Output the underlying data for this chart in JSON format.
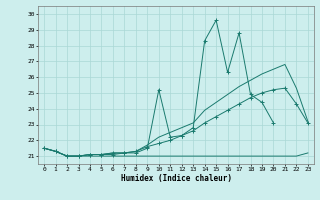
{
  "xlabel": "Humidex (Indice chaleur)",
  "x_values": [
    0,
    1,
    2,
    3,
    4,
    5,
    6,
    7,
    8,
    9,
    10,
    11,
    12,
    13,
    14,
    15,
    16,
    17,
    18,
    19,
    20,
    21,
    22,
    23
  ],
  "line_volatile": [
    21.5,
    21.3,
    21.0,
    21.0,
    21.1,
    21.1,
    21.1,
    21.2,
    21.2,
    21.5,
    25.2,
    22.2,
    22.3,
    22.8,
    28.3,
    29.6,
    26.3,
    28.8,
    24.9,
    24.4,
    23.1,
    null,
    null,
    null
  ],
  "line_flat": [
    21.5,
    21.3,
    21.0,
    21.0,
    21.0,
    21.0,
    21.0,
    21.0,
    21.0,
    21.0,
    21.0,
    21.0,
    21.0,
    21.0,
    21.0,
    21.0,
    21.0,
    21.0,
    21.0,
    21.0,
    21.0,
    21.0,
    21.0,
    21.2
  ],
  "line_upper": [
    21.5,
    21.3,
    21.0,
    21.0,
    21.1,
    21.1,
    21.2,
    21.2,
    21.3,
    21.7,
    22.2,
    22.5,
    22.8,
    23.1,
    23.9,
    24.4,
    24.9,
    25.4,
    25.8,
    26.2,
    26.5,
    26.8,
    25.3,
    23.2
  ],
  "line_mid": [
    21.5,
    21.3,
    21.0,
    21.0,
    21.1,
    21.1,
    21.2,
    21.2,
    21.3,
    21.6,
    21.8,
    22.0,
    22.3,
    22.6,
    23.1,
    23.5,
    23.9,
    24.3,
    24.7,
    25.0,
    25.2,
    25.3,
    24.3,
    23.1
  ],
  "ylim": [
    20.5,
    30.5
  ],
  "xlim": [
    -0.5,
    23.5
  ],
  "yticks": [
    21,
    22,
    23,
    24,
    25,
    26,
    27,
    28,
    29,
    30
  ],
  "xticks": [
    0,
    1,
    2,
    3,
    4,
    5,
    6,
    7,
    8,
    9,
    10,
    11,
    12,
    13,
    14,
    15,
    16,
    17,
    18,
    19,
    20,
    21,
    22,
    23
  ],
  "line_color": "#1a7a6e",
  "bg_color": "#cdeeed",
  "grid_color": "#aad8d5"
}
